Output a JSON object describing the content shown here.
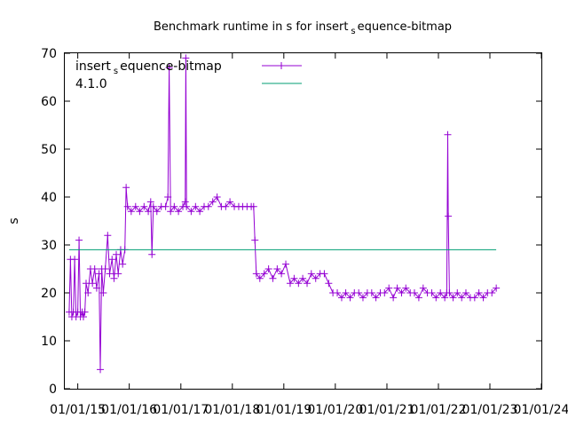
{
  "chart_data": {
    "type": "line",
    "title_main": "Benchmark runtime in s for insert",
    "title_sub": "s",
    "title_tail": "equence-bitmap",
    "ylabel": "s",
    "xlabel": "",
    "ylim": [
      0,
      70
    ],
    "xlim": [
      "2014-10-01",
      "2024-01-01"
    ],
    "yticks": [
      0,
      10,
      20,
      30,
      40,
      50,
      60,
      70
    ],
    "xticks": [
      {
        "date": "2015-01-01",
        "label": "01/01/15"
      },
      {
        "date": "2016-01-01",
        "label": "01/01/16"
      },
      {
        "date": "2017-01-01",
        "label": "01/01/17"
      },
      {
        "date": "2018-01-01",
        "label": "01/01/18"
      },
      {
        "date": "2019-01-01",
        "label": "01/01/19"
      },
      {
        "date": "2020-01-01",
        "label": "01/01/20"
      },
      {
        "date": "2021-01-01",
        "label": "01/01/21"
      },
      {
        "date": "2022-01-01",
        "label": "01/01/22"
      },
      {
        "date": "2023-01-01",
        "label": "01/01/23"
      },
      {
        "date": "2024-01-01",
        "label": "01/01/24"
      }
    ],
    "grid": false,
    "legend_placement": "top-left",
    "series": [
      {
        "name_main": "insert",
        "name_sub": "s",
        "name_tail": "equence-bitmap",
        "color": "#9400d3",
        "marker": "plus",
        "points": [
          [
            "2014-11-01",
            16
          ],
          [
            "2014-11-10",
            27
          ],
          [
            "2014-11-20",
            15
          ],
          [
            "2014-12-01",
            16
          ],
          [
            "2014-12-10",
            27
          ],
          [
            "2014-12-20",
            15
          ],
          [
            "2015-01-01",
            16
          ],
          [
            "2015-01-10",
            31
          ],
          [
            "2015-01-20",
            15
          ],
          [
            "2015-02-01",
            16
          ],
          [
            "2015-02-10",
            15
          ],
          [
            "2015-02-20",
            16
          ],
          [
            "2015-03-01",
            22
          ],
          [
            "2015-03-15",
            20
          ],
          [
            "2015-04-01",
            25
          ],
          [
            "2015-04-15",
            22
          ],
          [
            "2015-05-01",
            25
          ],
          [
            "2015-05-15",
            21
          ],
          [
            "2015-06-01",
            24
          ],
          [
            "2015-06-10",
            4
          ],
          [
            "2015-06-20",
            25
          ],
          [
            "2015-07-01",
            20
          ],
          [
            "2015-07-15",
            25
          ],
          [
            "2015-08-01",
            32
          ],
          [
            "2015-08-15",
            24
          ],
          [
            "2015-09-01",
            27
          ],
          [
            "2015-09-15",
            23
          ],
          [
            "2015-10-01",
            28
          ],
          [
            "2015-10-15",
            24
          ],
          [
            "2015-11-01",
            29
          ],
          [
            "2015-11-15",
            26
          ],
          [
            "2015-12-01",
            29
          ],
          [
            "2015-12-10",
            42
          ],
          [
            "2015-12-20",
            38
          ],
          [
            "2016-01-15",
            37
          ],
          [
            "2016-02-15",
            38
          ],
          [
            "2016-03-15",
            37
          ],
          [
            "2016-04-15",
            38
          ],
          [
            "2016-05-15",
            37
          ],
          [
            "2016-06-01",
            39
          ],
          [
            "2016-06-10",
            28
          ],
          [
            "2016-06-20",
            38
          ],
          [
            "2016-07-15",
            37
          ],
          [
            "2016-08-15",
            38
          ],
          [
            "2016-09-15",
            38
          ],
          [
            "2016-10-01",
            40
          ],
          [
            "2016-10-10",
            67
          ],
          [
            "2016-10-20",
            37
          ],
          [
            "2016-11-15",
            38
          ],
          [
            "2016-12-15",
            37
          ],
          [
            "2017-01-15",
            38
          ],
          [
            "2017-02-01",
            39
          ],
          [
            "2017-02-05",
            69
          ],
          [
            "2017-02-10",
            38
          ],
          [
            "2017-03-15",
            37
          ],
          [
            "2017-04-15",
            38
          ],
          [
            "2017-05-15",
            37
          ],
          [
            "2017-06-15",
            38
          ],
          [
            "2017-07-15",
            38
          ],
          [
            "2017-08-15",
            39
          ],
          [
            "2017-09-15",
            40
          ],
          [
            "2017-10-15",
            38
          ],
          [
            "2017-11-15",
            38
          ],
          [
            "2017-12-15",
            39
          ],
          [
            "2018-01-15",
            38
          ],
          [
            "2018-02-15",
            38
          ],
          [
            "2018-03-15",
            38
          ],
          [
            "2018-04-15",
            38
          ],
          [
            "2018-05-15",
            38
          ],
          [
            "2018-06-01",
            38
          ],
          [
            "2018-06-10",
            31
          ],
          [
            "2018-06-20",
            24
          ],
          [
            "2018-07-15",
            23
          ],
          [
            "2018-08-15",
            24
          ],
          [
            "2018-09-15",
            25
          ],
          [
            "2018-10-15",
            23
          ],
          [
            "2018-11-15",
            25
          ],
          [
            "2018-12-15",
            24
          ],
          [
            "2019-01-15",
            26
          ],
          [
            "2019-02-15",
            22
          ],
          [
            "2019-03-15",
            23
          ],
          [
            "2019-04-15",
            22
          ],
          [
            "2019-05-15",
            23
          ],
          [
            "2019-06-15",
            22
          ],
          [
            "2019-07-15",
            24
          ],
          [
            "2019-08-15",
            23
          ],
          [
            "2019-09-15",
            24
          ],
          [
            "2019-10-15",
            24
          ],
          [
            "2019-11-15",
            22
          ],
          [
            "2019-12-15",
            20
          ],
          [
            "2020-01-15",
            20
          ],
          [
            "2020-02-15",
            19
          ],
          [
            "2020-03-15",
            20
          ],
          [
            "2020-04-15",
            19
          ],
          [
            "2020-05-15",
            20
          ],
          [
            "2020-06-15",
            20
          ],
          [
            "2020-07-15",
            19
          ],
          [
            "2020-08-15",
            20
          ],
          [
            "2020-09-15",
            20
          ],
          [
            "2020-10-15",
            19
          ],
          [
            "2020-11-15",
            20
          ],
          [
            "2020-12-15",
            20
          ],
          [
            "2021-01-15",
            21
          ],
          [
            "2021-02-15",
            19
          ],
          [
            "2021-03-15",
            21
          ],
          [
            "2021-04-15",
            20
          ],
          [
            "2021-05-15",
            21
          ],
          [
            "2021-06-15",
            20
          ],
          [
            "2021-07-15",
            20
          ],
          [
            "2021-08-15",
            19
          ],
          [
            "2021-09-15",
            21
          ],
          [
            "2021-10-15",
            20
          ],
          [
            "2021-11-15",
            20
          ],
          [
            "2021-12-15",
            19
          ],
          [
            "2022-01-15",
            20
          ],
          [
            "2022-02-15",
            19
          ],
          [
            "2022-03-01",
            20
          ],
          [
            "2022-03-08",
            53
          ],
          [
            "2022-03-12",
            36
          ],
          [
            "2022-03-20",
            20
          ],
          [
            "2022-04-15",
            19
          ],
          [
            "2022-05-15",
            20
          ],
          [
            "2022-06-15",
            19
          ],
          [
            "2022-07-15",
            20
          ],
          [
            "2022-08-15",
            19
          ],
          [
            "2022-09-15",
            19
          ],
          [
            "2022-10-15",
            20
          ],
          [
            "2022-11-15",
            19
          ],
          [
            "2022-12-15",
            20
          ],
          [
            "2023-01-15",
            20
          ],
          [
            "2023-02-15",
            21
          ]
        ]
      },
      {
        "name": "4.1.0",
        "color": "#009e73",
        "marker": "none",
        "points": [
          [
            "2014-11-01",
            29
          ],
          [
            "2023-02-15",
            29
          ]
        ]
      }
    ]
  }
}
